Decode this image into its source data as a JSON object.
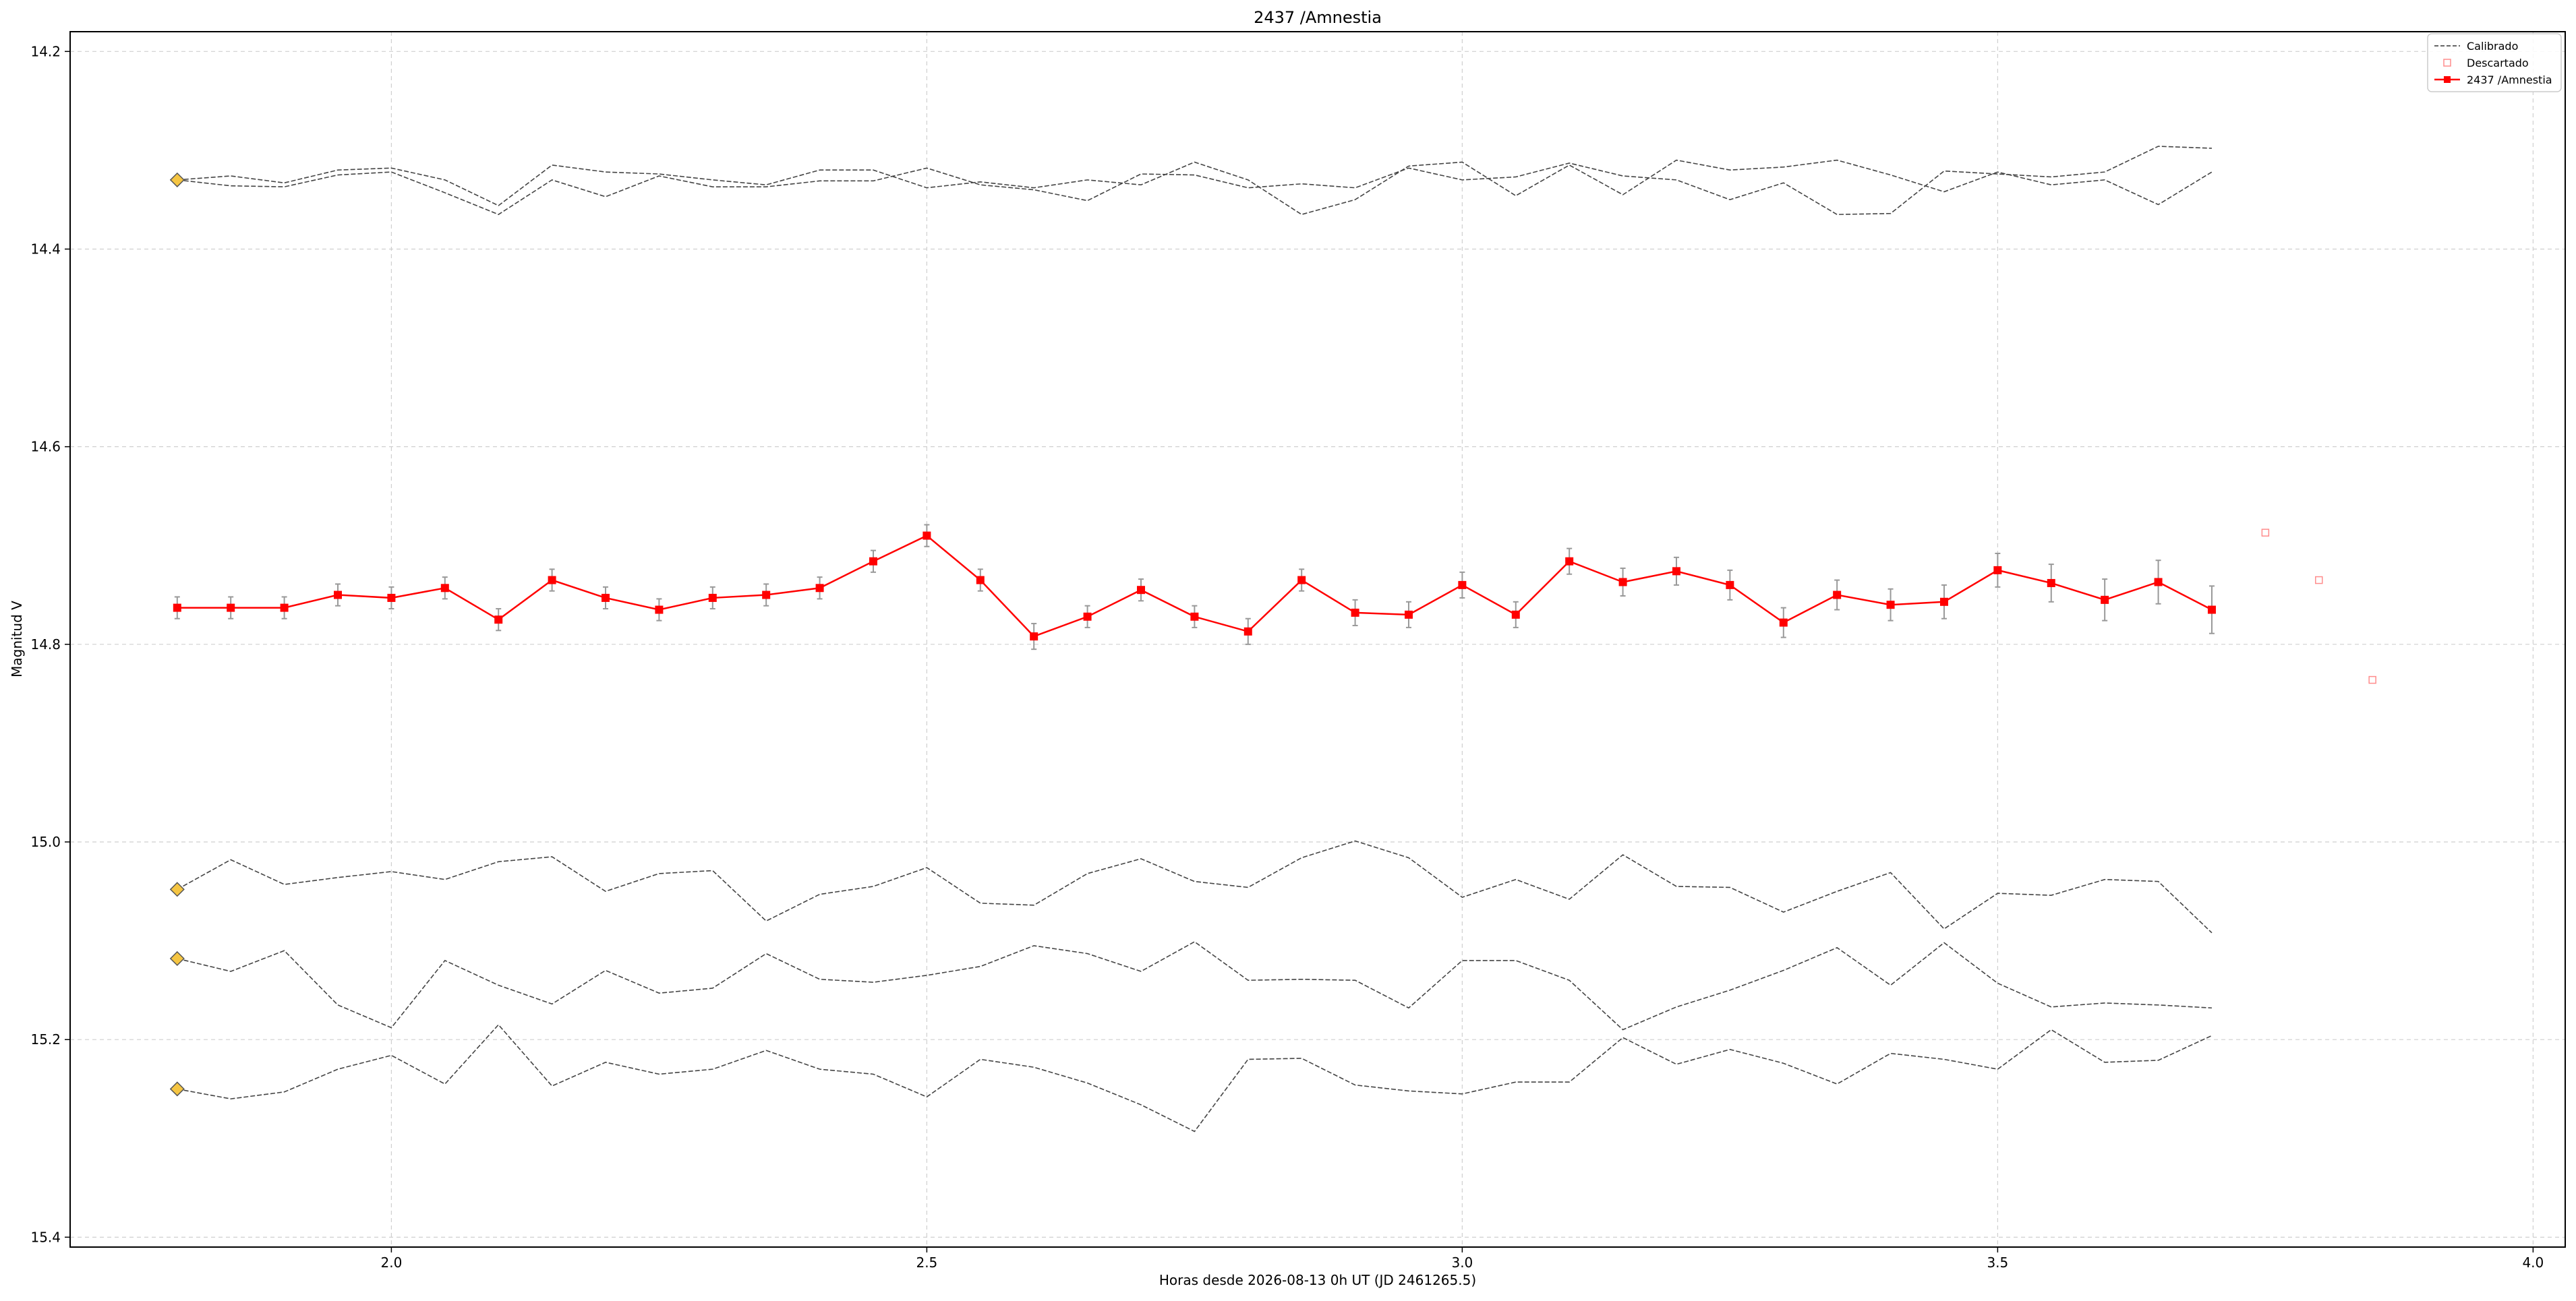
{
  "chart_data": {
    "type": "line",
    "title": "2437 /Amnestia",
    "xlabel": "Horas desde 2026-08-13 0h UT (JD 2461265.5)",
    "ylabel": "Magnitud V",
    "xlim": [
      1.7,
      4.03
    ],
    "ylim": [
      15.41,
      14.18
    ],
    "y_inverted": true,
    "grid": true,
    "legend_position": "top-right",
    "xticks": [
      2.0,
      2.5,
      3.0,
      3.5,
      4.0
    ],
    "xtick_labels": [
      "2.0",
      "2.5",
      "3.0",
      "3.5",
      "4.0"
    ],
    "yticks": [
      14.2,
      14.4,
      14.6,
      14.8,
      15.0,
      15.2,
      15.4
    ],
    "ytick_labels": [
      "14.2",
      "14.4",
      "14.6",
      "14.8",
      "15.0",
      "15.2",
      "15.4"
    ],
    "legend": [
      {
        "label": "Calibrado",
        "style": "dashed"
      },
      {
        "label": "Descartado",
        "style": "open-square"
      },
      {
        "label": "2437 /Amnestia",
        "style": "line-square"
      }
    ],
    "x": [
      1.8,
      1.85,
      1.9,
      1.95,
      2.0,
      2.05,
      2.1,
      2.15,
      2.2,
      2.25,
      2.3,
      2.35,
      2.4,
      2.45,
      2.5,
      2.55,
      2.6,
      2.65,
      2.7,
      2.75,
      2.8,
      2.85,
      2.9,
      2.95,
      3.0,
      3.05,
      3.1,
      3.15,
      3.2,
      3.25,
      3.3,
      3.35,
      3.4,
      3.45,
      3.5,
      3.55,
      3.6,
      3.65,
      3.7
    ],
    "target": {
      "name": "2437 /Amnestia",
      "color": "#ff0000",
      "y": [
        14.763,
        14.763,
        14.763,
        14.75,
        14.753,
        14.743,
        14.775,
        14.735,
        14.753,
        14.765,
        14.753,
        14.75,
        14.743,
        14.716,
        14.69,
        14.735,
        14.792,
        14.772,
        14.745,
        14.772,
        14.787,
        14.735,
        14.768,
        14.77,
        14.74,
        14.77,
        14.716,
        14.737,
        14.726,
        14.74,
        14.778,
        14.75,
        14.76,
        14.757,
        14.725,
        14.738,
        14.755,
        14.737,
        14.765
      ],
      "yerr": [
        0.011,
        0.011,
        0.011,
        0.011,
        0.011,
        0.011,
        0.011,
        0.011,
        0.011,
        0.011,
        0.011,
        0.011,
        0.011,
        0.011,
        0.011,
        0.011,
        0.013,
        0.011,
        0.011,
        0.011,
        0.013,
        0.011,
        0.013,
        0.013,
        0.013,
        0.013,
        0.013,
        0.014,
        0.014,
        0.015,
        0.015,
        0.015,
        0.016,
        0.017,
        0.017,
        0.019,
        0.021,
        0.022,
        0.024
      ]
    },
    "discarded": {
      "x": [
        3.75,
        3.8,
        3.85
      ],
      "y": [
        14.687,
        14.735,
        14.836
      ]
    },
    "calibrated": [
      {
        "y": [
          14.33,
          14.326,
          14.333,
          14.32,
          14.318,
          14.33,
          14.356,
          14.315,
          14.322,
          14.324,
          14.33,
          14.335,
          14.32,
          14.32,
          14.338,
          14.332,
          14.338,
          14.33,
          14.335,
          14.312,
          14.33,
          14.365,
          14.35,
          14.316,
          14.312,
          14.346,
          14.315,
          14.345,
          14.31,
          14.32,
          14.317,
          14.31,
          14.325,
          14.342,
          14.322,
          14.335,
          14.33,
          14.355,
          14.322
        ]
      },
      {
        "y": [
          14.33,
          14.336,
          14.337,
          14.325,
          14.322,
          14.343,
          14.365,
          14.33,
          14.347,
          14.326,
          14.337,
          14.337,
          14.331,
          14.331,
          14.318,
          14.335,
          14.34,
          14.351,
          14.324,
          14.325,
          14.338,
          14.334,
          14.338,
          14.318,
          14.33,
          14.327,
          14.313,
          14.326,
          14.33,
          14.35,
          14.333,
          14.365,
          14.364,
          14.321,
          14.324,
          14.327,
          14.322,
          14.296,
          14.298
        ]
      },
      {
        "y": [
          15.048,
          15.018,
          15.043,
          15.036,
          15.03,
          15.038,
          15.02,
          15.015,
          15.05,
          15.032,
          15.029,
          15.08,
          15.053,
          15.045,
          15.026,
          15.062,
          15.064,
          15.032,
          15.017,
          15.04,
          15.046,
          15.016,
          14.999,
          15.016,
          15.056,
          15.038,
          15.058,
          15.013,
          15.045,
          15.046,
          15.071,
          15.05,
          15.031,
          15.088,
          15.052,
          15.054,
          15.038,
          15.04,
          15.092
        ]
      },
      {
        "y": [
          15.118,
          15.131,
          15.11,
          15.165,
          15.188,
          15.12,
          15.145,
          15.164,
          15.13,
          15.153,
          15.148,
          15.113,
          15.139,
          15.142,
          15.135,
          15.126,
          15.105,
          15.113,
          15.131,
          15.101,
          15.14,
          15.139,
          15.14,
          15.168,
          15.12,
          15.12,
          15.14,
          15.19,
          15.167,
          15.15,
          15.13,
          15.107,
          15.145,
          15.102,
          15.143,
          15.167,
          15.163,
          15.165,
          15.168
        ]
      },
      {
        "y": [
          15.25,
          15.26,
          15.253,
          15.23,
          15.216,
          15.245,
          15.185,
          15.247,
          15.223,
          15.235,
          15.23,
          15.211,
          15.23,
          15.235,
          15.258,
          15.22,
          15.228,
          15.244,
          15.266,
          15.293,
          15.22,
          15.219,
          15.246,
          15.252,
          15.255,
          15.243,
          15.243,
          15.198,
          15.225,
          15.21,
          15.224,
          15.245,
          15.214,
          15.22,
          15.23,
          15.19,
          15.223,
          15.221,
          15.196
        ]
      }
    ],
    "reference_markers": {
      "x": 1.8,
      "y": [
        14.33,
        15.048,
        15.118,
        15.25
      ],
      "color": "#f5c542"
    }
  }
}
